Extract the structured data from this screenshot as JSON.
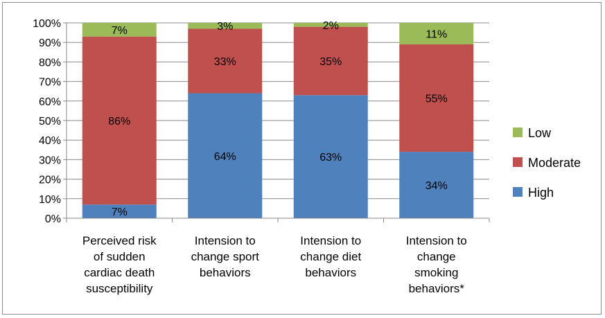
{
  "chart_data": {
    "type": "bar",
    "stacked": true,
    "percent": true,
    "categories": [
      [
        "Perceived risk",
        "of sudden",
        "cardiac death",
        "susceptibility"
      ],
      [
        "Intension to",
        "change sport",
        "behaviors"
      ],
      [
        "Intension to",
        "change diet",
        "behaviors"
      ],
      [
        "Intension to",
        "change",
        "smoking",
        "behaviors*"
      ]
    ],
    "series": [
      {
        "name": "High",
        "values": [
          7,
          64,
          63,
          34
        ],
        "labels": [
          "7%",
          "64%",
          "63%",
          "34%"
        ],
        "color": "#4f81bd"
      },
      {
        "name": "Moderate",
        "values": [
          86,
          33,
          35,
          55
        ],
        "labels": [
          "86%",
          "33%",
          "35%",
          "55%"
        ],
        "color": "#c0504d"
      },
      {
        "name": "Low",
        "values": [
          7,
          3,
          2,
          11
        ],
        "labels": [
          "7%",
          "3%",
          "2%",
          "11%"
        ],
        "color": "#9bbb59"
      }
    ],
    "yticks": [
      "0%",
      "10%",
      "20%",
      "30%",
      "40%",
      "50%",
      "60%",
      "70%",
      "80%",
      "90%",
      "100%"
    ],
    "ylim": [
      0,
      100
    ],
    "grid": true,
    "legend": "right",
    "title": "",
    "xlabel": "",
    "ylabel": ""
  }
}
